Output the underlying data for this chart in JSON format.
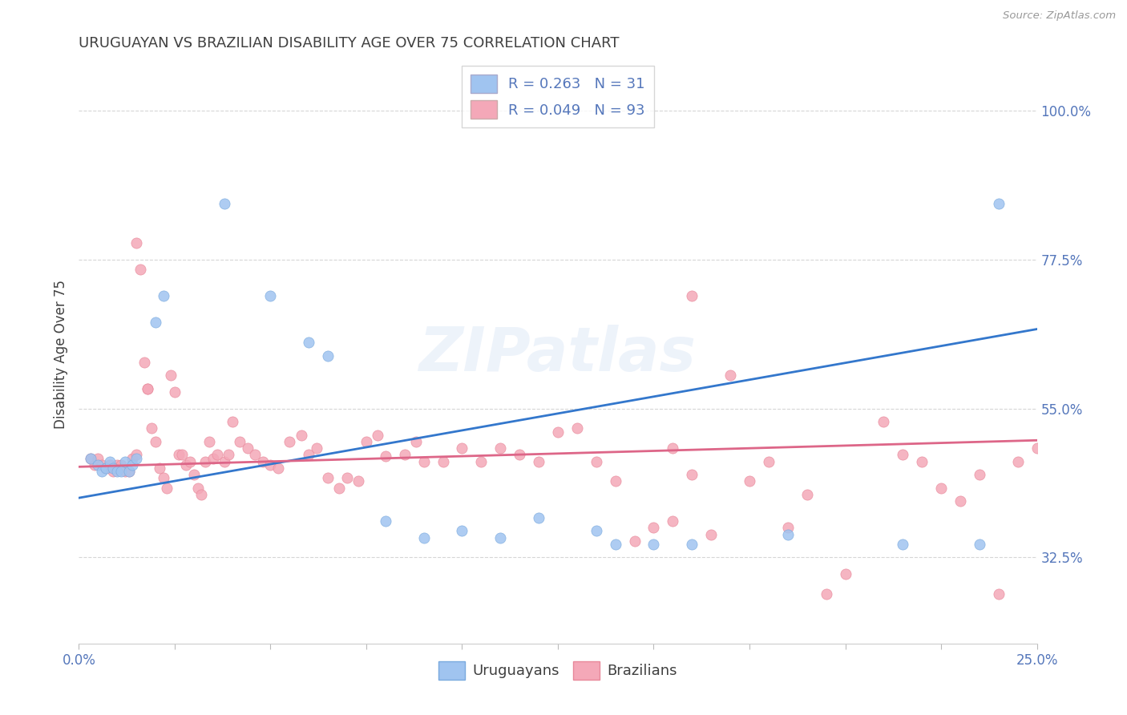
{
  "title": "URUGUAYAN VS BRAZILIAN DISABILITY AGE OVER 75 CORRELATION CHART",
  "source": "Source: ZipAtlas.com",
  "ylabel": "Disability Age Over 75",
  "xlim": [
    0.0,
    0.25
  ],
  "ylim": [
    0.195,
    1.07
  ],
  "xticks": [
    0.0,
    0.025,
    0.05,
    0.075,
    0.1,
    0.125,
    0.15,
    0.175,
    0.2,
    0.225,
    0.25
  ],
  "xtick_labels": [
    "0.0%",
    "",
    "",
    "",
    "",
    "",
    "",
    "",
    "",
    "",
    "25.0%"
  ],
  "ytick_positions": [
    0.325,
    0.55,
    0.775,
    1.0
  ],
  "ytick_labels": [
    "32.5%",
    "55.0%",
    "77.5%",
    "100.0%"
  ],
  "watermark": "ZIPatlas",
  "uruguayan_x": [
    0.003,
    0.005,
    0.006,
    0.007,
    0.008,
    0.009,
    0.01,
    0.011,
    0.012,
    0.013,
    0.014,
    0.015,
    0.02,
    0.022,
    0.038,
    0.05,
    0.06,
    0.065,
    0.08,
    0.09,
    0.1,
    0.11,
    0.12,
    0.135,
    0.14,
    0.15,
    0.16,
    0.185,
    0.215,
    0.235,
    0.24
  ],
  "uruguayan_y": [
    0.475,
    0.465,
    0.455,
    0.46,
    0.47,
    0.46,
    0.455,
    0.455,
    0.47,
    0.455,
    0.465,
    0.475,
    0.68,
    0.72,
    0.86,
    0.72,
    0.65,
    0.63,
    0.38,
    0.355,
    0.365,
    0.355,
    0.385,
    0.365,
    0.345,
    0.345,
    0.345,
    0.36,
    0.345,
    0.345,
    0.86
  ],
  "brazilian_x": [
    0.003,
    0.004,
    0.005,
    0.006,
    0.007,
    0.008,
    0.009,
    0.01,
    0.01,
    0.011,
    0.012,
    0.013,
    0.014,
    0.015,
    0.015,
    0.016,
    0.017,
    0.018,
    0.018,
    0.019,
    0.02,
    0.021,
    0.022,
    0.023,
    0.024,
    0.025,
    0.026,
    0.027,
    0.028,
    0.029,
    0.03,
    0.031,
    0.032,
    0.033,
    0.034,
    0.035,
    0.036,
    0.038,
    0.039,
    0.04,
    0.042,
    0.044,
    0.046,
    0.048,
    0.05,
    0.052,
    0.055,
    0.058,
    0.06,
    0.062,
    0.065,
    0.068,
    0.07,
    0.073,
    0.075,
    0.078,
    0.08,
    0.085,
    0.088,
    0.09,
    0.095,
    0.1,
    0.105,
    0.11,
    0.115,
    0.12,
    0.125,
    0.13,
    0.135,
    0.14,
    0.145,
    0.15,
    0.155,
    0.16,
    0.165,
    0.175,
    0.185,
    0.19,
    0.2,
    0.21,
    0.215,
    0.22,
    0.225,
    0.23,
    0.235,
    0.24,
    0.245,
    0.25,
    0.155,
    0.16,
    0.17,
    0.18,
    0.195
  ],
  "brazilian_y": [
    0.475,
    0.465,
    0.475,
    0.465,
    0.46,
    0.465,
    0.455,
    0.46,
    0.465,
    0.465,
    0.455,
    0.455,
    0.475,
    0.48,
    0.8,
    0.76,
    0.62,
    0.58,
    0.58,
    0.52,
    0.5,
    0.46,
    0.445,
    0.43,
    0.6,
    0.575,
    0.48,
    0.48,
    0.465,
    0.47,
    0.45,
    0.43,
    0.42,
    0.47,
    0.5,
    0.475,
    0.48,
    0.47,
    0.48,
    0.53,
    0.5,
    0.49,
    0.48,
    0.47,
    0.465,
    0.46,
    0.5,
    0.51,
    0.48,
    0.49,
    0.445,
    0.43,
    0.445,
    0.44,
    0.5,
    0.51,
    0.478,
    0.48,
    0.5,
    0.47,
    0.47,
    0.49,
    0.47,
    0.49,
    0.48,
    0.47,
    0.515,
    0.52,
    0.47,
    0.44,
    0.35,
    0.37,
    0.38,
    0.72,
    0.36,
    0.44,
    0.37,
    0.42,
    0.3,
    0.53,
    0.48,
    0.47,
    0.43,
    0.41,
    0.45,
    0.27,
    0.47,
    0.49,
    0.49,
    0.45,
    0.6,
    0.47,
    0.27
  ],
  "blue_line_x": [
    0.0,
    0.25
  ],
  "blue_line_y": [
    0.415,
    0.67
  ],
  "pink_line_x": [
    0.0,
    0.25
  ],
  "pink_line_y": [
    0.462,
    0.502
  ],
  "uruguayan_color": "#a0c4f0",
  "uruguayan_edge_color": "#7aaade",
  "brazilian_color": "#f4a8b8",
  "brazilian_edge_color": "#e8889a",
  "uruguayan_line_color": "#3377cc",
  "brazilian_line_color": "#dd6688",
  "grid_color": "#cccccc",
  "title_color": "#404040",
  "axis_color": "#5577bb",
  "background_color": "#ffffff",
  "title_fontsize": 13,
  "axis_fontsize": 12,
  "legend_fontsize": 13,
  "scatter_size": 90
}
